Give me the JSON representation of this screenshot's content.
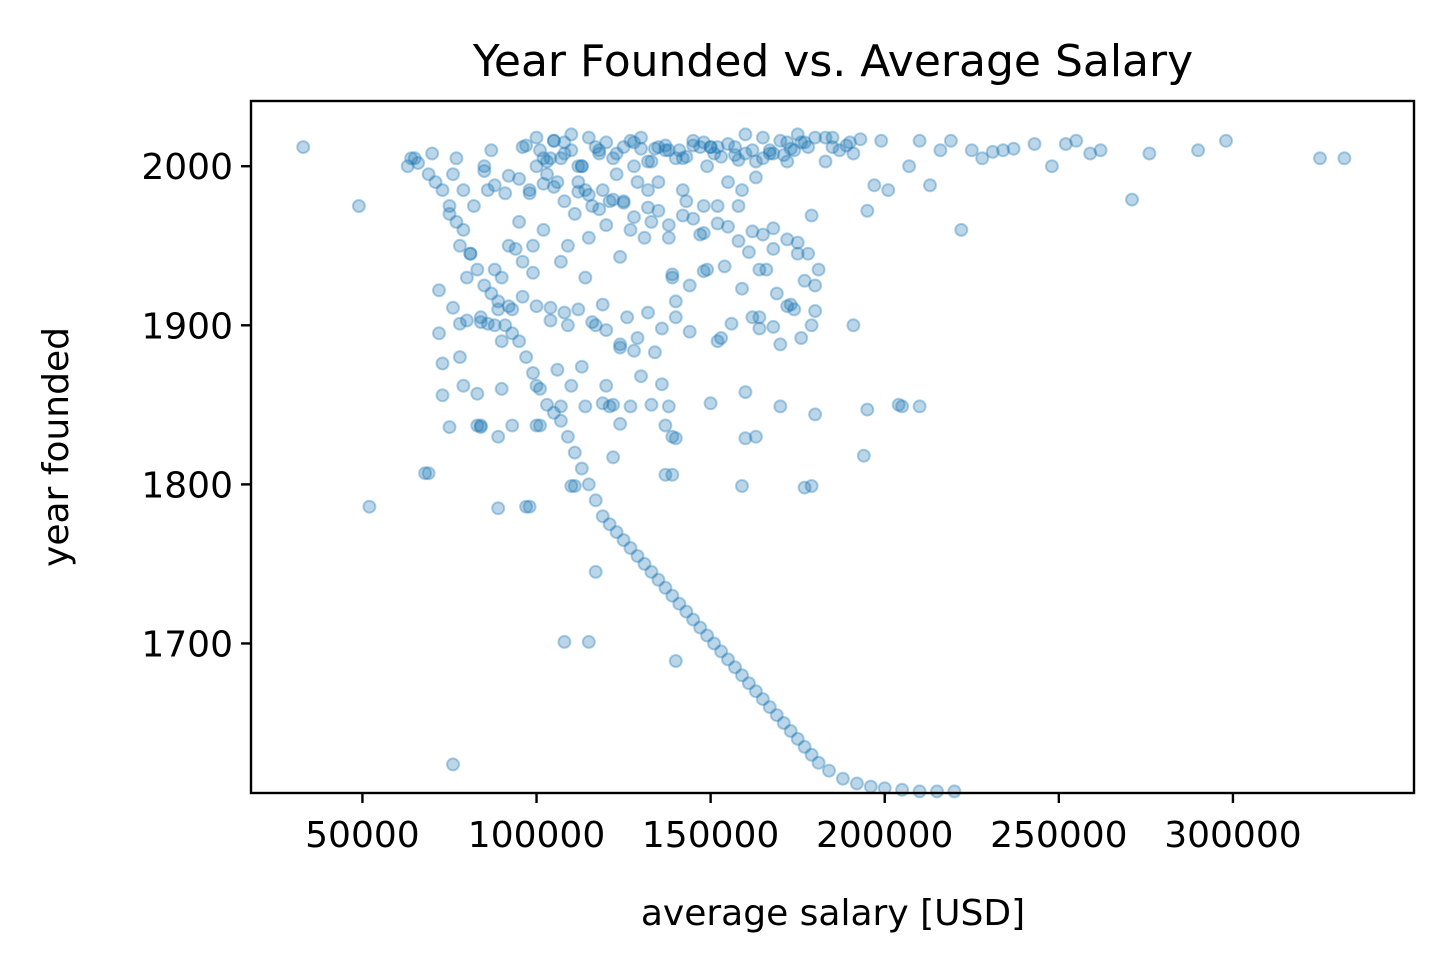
{
  "chart_data": {
    "type": "scatter",
    "title": "Year Founded vs. Average Salary",
    "xlabel": "average salary [USD]",
    "ylabel": "year founded",
    "xlim": [
      18000,
      352000
    ],
    "ylim": [
      1606,
      2041
    ],
    "xticks": [
      {
        "value": 50000,
        "label": "50000"
      },
      {
        "value": 100000,
        "label": "100000"
      },
      {
        "value": 150000,
        "label": "150000"
      },
      {
        "value": 200000,
        "label": "200000"
      },
      {
        "value": 250000,
        "label": "250000"
      },
      {
        "value": 300000,
        "label": "300000"
      }
    ],
    "yticks": [
      {
        "value": 1700,
        "label": "1700"
      },
      {
        "value": 1800,
        "label": "1800"
      },
      {
        "value": 1900,
        "label": "1900"
      },
      {
        "value": 2000,
        "label": "2000"
      }
    ],
    "grid": false,
    "marker_color": "#1f77b4",
    "marker_alpha": 0.3,
    "series": [
      {
        "x": [
          33000,
          49000,
          52000,
          63000,
          65000,
          68000,
          70000,
          72000,
          73000,
          75000,
          76000,
          77000,
          78000,
          78000,
          79000,
          80000,
          81000,
          82000,
          83000,
          84000,
          85000,
          86000,
          87000,
          88000,
          89000,
          90000,
          91000,
          92000,
          93000,
          95000,
          96000,
          97000,
          98000,
          99000,
          100000,
          101000,
          102000,
          103000,
          104000,
          105000,
          106000,
          107000,
          108000,
          109000,
          110000,
          111000,
          112000,
          113000,
          114000,
          115000,
          116000,
          117000,
          118000,
          119000,
          120000,
          121000,
          122000,
          123000,
          124000,
          125000,
          126000,
          127000,
          128000,
          129000,
          130000,
          131000,
          132000,
          133000,
          134000,
          135000,
          136000,
          137000,
          138000,
          139000,
          140000,
          141000,
          142000,
          143000,
          145000,
          147000,
          148000,
          149000,
          150000,
          151000,
          152000,
          153000,
          155000,
          157000,
          158000,
          159000,
          160000,
          161000,
          162000,
          163000,
          164000,
          165000,
          166000,
          167000,
          168000,
          170000,
          171000,
          172000,
          173000,
          174000,
          175000,
          176000,
          177000,
          178000,
          179000,
          180000,
          181000,
          183000,
          185000,
          187000,
          189000,
          191000,
          193000,
          195000,
          197000,
          199000,
          201000,
          204000,
          207000,
          210000,
          213000,
          216000,
          219000,
          222000,
          225000,
          228000,
          231000,
          234000,
          237000,
          243000,
          248000,
          252000,
          255000,
          259000,
          262000,
          271000,
          276000,
          290000,
          298000,
          325000,
          332000,
          100000,
          105000,
          110000,
          115000,
          120000,
          125000,
          130000,
          135000,
          140000,
          145000,
          150000,
          155000,
          160000,
          165000,
          170000,
          175000,
          180000,
          102000,
          108000,
          112000,
          118000,
          122000,
          128000,
          132000,
          138000,
          142000,
          148000,
          152000,
          158000,
          162000,
          168000,
          172000,
          178000,
          185000,
          190000,
          96000,
          103000,
          107000,
          113000,
          117000,
          123000,
          127000,
          133000,
          137000,
          143000,
          147000,
          153000,
          157000,
          163000,
          167000,
          173000,
          177000,
          183000,
          64000,
          66000,
          69000,
          71000,
          73000,
          75000,
          77000,
          79000,
          81000,
          83000,
          85000,
          87000,
          89000,
          91000,
          93000,
          95000,
          97000,
          99000,
          101000,
          103000,
          105000,
          107000,
          109000,
          111000,
          113000,
          115000,
          117000,
          119000,
          121000,
          123000,
          125000,
          127000,
          129000,
          131000,
          133000,
          135000,
          137000,
          139000,
          141000,
          143000,
          145000,
          147000,
          149000,
          151000,
          153000,
          155000,
          157000,
          159000,
          161000,
          163000,
          165000,
          167000,
          169000,
          171000,
          173000,
          175000,
          177000,
          179000,
          181000,
          184000,
          188000,
          192000,
          196000,
          200000,
          205000,
          210000,
          215000,
          220000,
          85000,
          95000,
          105000,
          115000,
          125000,
          135000,
          145000,
          155000,
          165000,
          175000,
          88000,
          98000,
          108000,
          118000,
          128000,
          138000,
          148000,
          158000,
          168000,
          92000,
          102000,
          112000,
          122000,
          132000,
          142000,
          152000,
          162000,
          172000,
          76000,
          80000,
          84000,
          88000,
          92000,
          96000,
          100000,
          104000,
          108000,
          112000,
          116000,
          120000,
          124000,
          128000,
          132000,
          136000,
          140000,
          144000,
          148000,
          152000,
          156000,
          160000,
          164000,
          168000,
          172000,
          176000,
          180000,
          72000,
          78000,
          86000,
          90000,
          94000,
          99000,
          104000,
          109000,
          114000,
          119000,
          124000,
          129000,
          134000,
          139000,
          144000,
          149000,
          154000,
          159000,
          164000,
          169000,
          174000,
          179000,
          79000,
          83000,
          90000,
          100000,
          110000,
          120000,
          130000,
          140000,
          150000,
          160000,
          170000,
          180000,
          195000,
          205000,
          75000,
          84000,
          89000,
          97000,
          107000,
          114000,
          121000,
          127000,
          133000,
          138000,
          101000,
          122000,
          137000,
          163000,
          177000,
          194000,
          210000,
          84000,
          100000,
          111000,
          119000,
          137000,
          139000,
          159000,
          179000,
          191000,
          73000,
          93000,
          106000,
          113000,
          124000,
          139000,
          69000,
          89000,
          98000,
          110000,
          117000,
          115000,
          140000,
          108000,
          76000
        ],
        "y": [
          2012,
          1975,
          1786,
          2000,
          2005,
          1807,
          2008,
          1922,
          1876,
          1970,
          1995,
          2005,
          1880,
          1950,
          1985,
          1930,
          1945,
          1975,
          1837,
          1905,
          2000,
          1985,
          2010,
          1900,
          1915,
          1890,
          1983,
          1950,
          1910,
          1965,
          1940,
          2013,
          1985,
          1950,
          2000,
          2010,
          1960,
          1995,
          2005,
          2016,
          1990,
          1940,
          2015,
          1950,
          2010,
          1970,
          1990,
          2000,
          1985,
          1955,
          1975,
          1900,
          2008,
          1985,
          1963,
          1978,
          1850,
          1995,
          1943,
          1978,
          1905,
          1960,
          2015,
          1990,
          2011,
          1955,
          1985,
          1965,
          2011,
          1990,
          1863,
          2013,
          1955,
          1930,
          1915,
          2010,
          1985,
          1978,
          2013,
          1957,
          1975,
          2000,
          2012,
          2008,
          1975,
          1892,
          1990,
          2007,
          1975,
          1985,
          2008,
          1946,
          1905,
          1993,
          1898,
          2005,
          1935,
          2010,
          1961,
          1888,
          2007,
          2015,
          1913,
          2010,
          1945,
          2015,
          1928,
          1945,
          1969,
          1925,
          1935,
          2003,
          2012,
          2010,
          2013,
          2008,
          2017,
          1972,
          1988,
          2016,
          1985,
          1850,
          2000,
          2016,
          1988,
          2010,
          2016,
          1960,
          2010,
          2005,
          2009,
          2010,
          2011,
          2014,
          2000,
          2014,
          2016,
          2008,
          2010,
          1979,
          2008,
          2010,
          2016,
          2005,
          2005,
          2018,
          2016,
          2020,
          2018,
          2015,
          2012,
          2018,
          2012,
          2005,
          2016,
          2012,
          2014,
          2020,
          2018,
          2016,
          2020,
          2018,
          2005,
          2008,
          2000,
          2010,
          2005,
          2000,
          2003,
          2010,
          2005,
          2015,
          2012,
          2004,
          2010,
          2008,
          2003,
          2012,
          2018,
          2015,
          2012,
          2003,
          2005,
          2000,
          2012,
          2008,
          2016,
          2003,
          2010,
          2006,
          2012,
          2006,
          2012,
          2003,
          2008,
          2011,
          2015,
          2018,
          2005,
          2002,
          1995,
          1990,
          1985,
          1975,
          1965,
          1960,
          1945,
          1935,
          1925,
          1920,
          1910,
          1900,
          1895,
          1890,
          1880,
          1870,
          1860,
          1850,
          1845,
          1840,
          1830,
          1820,
          1810,
          1800,
          1790,
          1780,
          1775,
          1770,
          1765,
          1760,
          1755,
          1750,
          1745,
          1740,
          1735,
          1730,
          1725,
          1720,
          1715,
          1710,
          1705,
          1700,
          1695,
          1690,
          1685,
          1680,
          1675,
          1670,
          1665,
          1660,
          1655,
          1650,
          1645,
          1640,
          1635,
          1630,
          1625,
          1620,
          1615,
          1612,
          1610,
          1609,
          1608,
          1607,
          1607,
          1607,
          1997,
          1992,
          1987,
          1982,
          1977,
          1972,
          1967,
          1962,
          1957,
          1952,
          1988,
          1983,
          1978,
          1973,
          1968,
          1963,
          1958,
          1953,
          1948,
          1994,
          1989,
          1984,
          1979,
          1974,
          1969,
          1964,
          1959,
          1954,
          1911,
          1903,
          1902,
          1935,
          1912,
          1918,
          1912,
          1903,
          1908,
          1910,
          1902,
          1897,
          1888,
          1884,
          1908,
          1898,
          1905,
          1896,
          1934,
          1890,
          1901,
          1858,
          1905,
          1899,
          1912,
          1892,
          1909,
          1895,
          1901,
          1901,
          1930,
          1948,
          1933,
          1911,
          1900,
          1930,
          1913,
          1886,
          1892,
          1883,
          1932,
          1925,
          1935,
          1937,
          1923,
          1935,
          1920,
          1910,
          1900,
          1862,
          1857,
          1860,
          1862,
          1862,
          1862,
          1868,
          1829,
          1851,
          1829,
          1849,
          1844,
          1847,
          1849,
          1836,
          1836,
          1830,
          1786,
          1849,
          1849,
          1849,
          1849,
          1850,
          1849,
          1837,
          1817,
          1806,
          1830,
          1798,
          1818,
          1849,
          1837,
          1837,
          1799,
          1851,
          1837,
          1806,
          1799,
          1799,
          1900,
          1856,
          1837,
          1872,
          1874,
          1838,
          1830,
          1807,
          1785,
          1786,
          1799,
          1745,
          1701,
          1689,
          1701,
          1624
        ]
      }
    ]
  }
}
